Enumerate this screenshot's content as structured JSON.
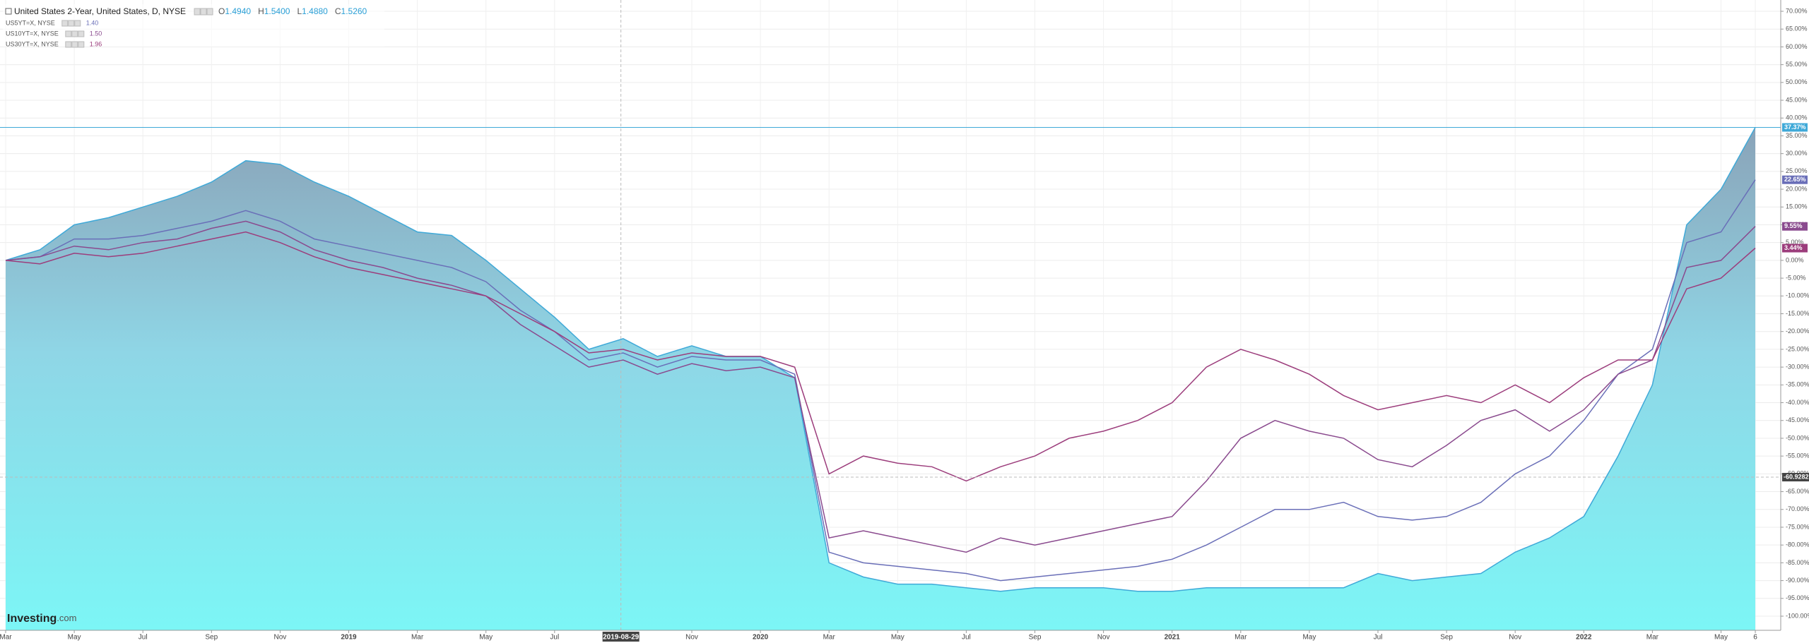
{
  "chart_data": {
    "type": "area-line",
    "x": [
      "2018-03",
      "2018-04",
      "2018-05",
      "2018-06",
      "2018-07",
      "2018-08",
      "2018-09",
      "2018-10",
      "2018-11",
      "2018-12",
      "2019-01",
      "2019-02",
      "2019-03",
      "2019-04",
      "2019-05",
      "2019-06",
      "2019-07",
      "2019-08",
      "2019-09",
      "2019-10",
      "2019-11",
      "2019-12",
      "2020-01",
      "2020-02",
      "2020-03",
      "2020-04",
      "2020-05",
      "2020-06",
      "2020-07",
      "2020-08",
      "2020-09",
      "2020-10",
      "2020-11",
      "2020-12",
      "2021-01",
      "2021-02",
      "2021-03",
      "2021-04",
      "2021-05",
      "2021-06",
      "2021-07",
      "2021-08",
      "2021-09",
      "2021-10",
      "2021-11",
      "2021-12",
      "2022-01",
      "2022-02",
      "2022-03",
      "2022-04",
      "2022-05",
      "2022-06"
    ],
    "series": [
      {
        "name": "United States 2-Year, United States, D, NYSE",
        "color": "#3fa9d8",
        "fill": true,
        "end_label": "37.37%",
        "ohlc": [
          {
            "label": "O",
            "value": "1.4940"
          },
          {
            "label": "H",
            "value": "1.5400"
          },
          {
            "label": "L",
            "value": "1.4880"
          },
          {
            "label": "C",
            "value": "1.5260"
          }
        ],
        "values": [
          0,
          3,
          10,
          12,
          15,
          18,
          22,
          28,
          27,
          22,
          18,
          13,
          8,
          7,
          0,
          -8,
          -16,
          -25,
          -22,
          -27,
          -24,
          -27,
          -27,
          -33,
          -85,
          -89,
          -91,
          -91,
          -92,
          -93,
          -92,
          -92,
          -92,
          -93,
          -93,
          -92,
          -92,
          -92,
          -92,
          -92,
          -88,
          -90,
          -89,
          -88,
          -82,
          -78,
          -72,
          -55,
          -35,
          10,
          20,
          37.37
        ]
      },
      {
        "name": "US5YT=X, NYSE",
        "legend_value": "1.40",
        "color": "#6a6fb8",
        "end_label": "22.65%",
        "values": [
          0,
          1,
          6,
          6,
          7,
          9,
          11,
          14,
          11,
          6,
          4,
          2,
          0,
          -2,
          -6,
          -14,
          -20,
          -28,
          -26,
          -30,
          -27,
          -28,
          -28,
          -32,
          -82,
          -85,
          -86,
          -87,
          -88,
          -90,
          -89,
          -88,
          -87,
          -86,
          -84,
          -80,
          -75,
          -70,
          -70,
          -68,
          -72,
          -73,
          -72,
          -68,
          -60,
          -55,
          -45,
          -32,
          -25,
          5,
          8,
          22.65
        ]
      },
      {
        "name": "US10YT=X, NYSE",
        "legend_value": "1.50",
        "color": "#8a4a8e",
        "end_label": "9.55%",
        "values": [
          0,
          1,
          4,
          3,
          5,
          6,
          9,
          11,
          8,
          3,
          0,
          -2,
          -5,
          -7,
          -10,
          -18,
          -24,
          -30,
          -28,
          -32,
          -29,
          -31,
          -30,
          -33,
          -78,
          -76,
          -78,
          -80,
          -82,
          -78,
          -80,
          -78,
          -76,
          -74,
          -72,
          -62,
          -50,
          -45,
          -48,
          -50,
          -56,
          -58,
          -52,
          -45,
          -42,
          -48,
          -42,
          -32,
          -28,
          -2,
          0,
          9.55
        ]
      },
      {
        "name": "US30YT=X, NYSE",
        "legend_value": "1.96",
        "color": "#9c3d7c",
        "end_label": "3.44%",
        "values": [
          0,
          -1,
          2,
          1,
          2,
          4,
          6,
          8,
          5,
          1,
          -2,
          -4,
          -6,
          -8,
          -10,
          -15,
          -20,
          -26,
          -25,
          -28,
          -26,
          -27,
          -27,
          -30,
          -60,
          -55,
          -57,
          -58,
          -62,
          -58,
          -55,
          -50,
          -48,
          -45,
          -40,
          -30,
          -25,
          -28,
          -32,
          -38,
          -42,
          -40,
          -38,
          -40,
          -35,
          -40,
          -33,
          -28,
          -28,
          -8,
          -5,
          3.44
        ]
      }
    ],
    "ylim": [
      -102,
      71
    ],
    "yticks": [
      {
        "value": 70,
        "label": "70.00%"
      },
      {
        "value": 65,
        "label": "65.00%"
      },
      {
        "value": 60,
        "label": "60.00%"
      },
      {
        "value": 55,
        "label": "55.00%"
      },
      {
        "value": 50,
        "label": "50.00%"
      },
      {
        "value": 45,
        "label": "45.00%"
      },
      {
        "value": 40,
        "label": "40.00%"
      },
      {
        "value": 35,
        "label": "35.00%"
      },
      {
        "value": 30,
        "label": "30.00%"
      },
      {
        "value": 25,
        "label": "25.00%"
      },
      {
        "value": 20,
        "label": "20.00%"
      },
      {
        "value": 15,
        "label": "15.00%"
      },
      {
        "value": 10,
        "label": "10.00%"
      },
      {
        "value": 5,
        "label": "5.00%"
      },
      {
        "value": 0,
        "label": "0.00%"
      },
      {
        "value": -5,
        "label": "-5.00%"
      },
      {
        "value": -10,
        "label": "-10.00%"
      },
      {
        "value": -15,
        "label": "-15.00%"
      },
      {
        "value": -20,
        "label": "-20.00%"
      },
      {
        "value": -25,
        "label": "-25.00%"
      },
      {
        "value": -30,
        "label": "-30.00%"
      },
      {
        "value": -35,
        "label": "-35.00%"
      },
      {
        "value": -40,
        "label": "-40.00%"
      },
      {
        "value": -45,
        "label": "-45.00%"
      },
      {
        "value": -50,
        "label": "-50.00%"
      },
      {
        "value": -55,
        "label": "-55.00%"
      },
      {
        "value": -60,
        "label": "-60.00%"
      },
      {
        "value": -65,
        "label": "-65.00%"
      },
      {
        "value": -70,
        "label": "-70.00%"
      },
      {
        "value": -75,
        "label": "-75.00%"
      },
      {
        "value": -80,
        "label": "-80.00%"
      },
      {
        "value": -85,
        "label": "-85.00%"
      },
      {
        "value": -90,
        "label": "-90.00%"
      },
      {
        "value": -95,
        "label": "-95.00%"
      },
      {
        "value": -100,
        "label": "-100.00%"
      }
    ],
    "xticks": [
      {
        "value": "2018-03",
        "label": "Mar"
      },
      {
        "value": "2018-05",
        "label": "May"
      },
      {
        "value": "2018-07",
        "label": "Jul"
      },
      {
        "value": "2018-09",
        "label": "Sep"
      },
      {
        "value": "2018-11",
        "label": "Nov"
      },
      {
        "value": "2019-01",
        "label": "2019"
      },
      {
        "value": "2019-03",
        "label": "Mar"
      },
      {
        "value": "2019-05",
        "label": "May"
      },
      {
        "value": "2019-07",
        "label": "Jul"
      },
      {
        "value": "2019-11",
        "label": "Nov"
      },
      {
        "value": "2020-01",
        "label": "2020"
      },
      {
        "value": "2020-03",
        "label": "Mar"
      },
      {
        "value": "2020-05",
        "label": "May"
      },
      {
        "value": "2020-07",
        "label": "Jul"
      },
      {
        "value": "2020-09",
        "label": "Sep"
      },
      {
        "value": "2020-11",
        "label": "Nov"
      },
      {
        "value": "2021-01",
        "label": "2021"
      },
      {
        "value": "2021-03",
        "label": "Mar"
      },
      {
        "value": "2021-05",
        "label": "May"
      },
      {
        "value": "2021-07",
        "label": "Jul"
      },
      {
        "value": "2021-09",
        "label": "Sep"
      },
      {
        "value": "2021-11",
        "label": "Nov"
      },
      {
        "value": "2022-01",
        "label": "2022"
      },
      {
        "value": "2022-03",
        "label": "Mar"
      },
      {
        "value": "2022-05",
        "label": "May"
      },
      {
        "value": "2022-06",
        "label": "6"
      }
    ],
    "crosshair": {
      "x": "2019-08-29",
      "y": -60.9282
    },
    "grid": true,
    "logo": "Investing",
    "logo_suffix": ".com"
  }
}
